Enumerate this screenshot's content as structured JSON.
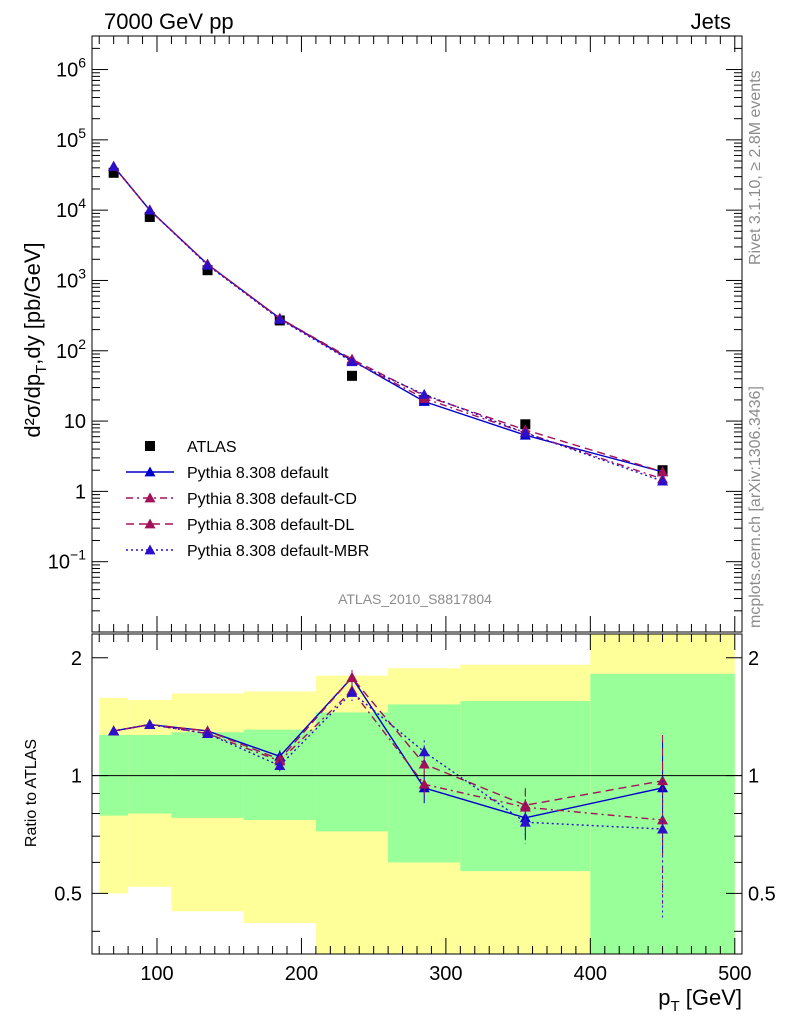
{
  "header": {
    "left": "7000 GeV pp",
    "right": "Jets"
  },
  "side_labels": {
    "rivet": "Rivet 3.1.10, ≥ 2.8M events",
    "mcplots": "mcplots.cern.ch [arXiv:1306.3436]"
  },
  "analysis_id": "ATLAS_2010_S8817804",
  "chart_data": [
    {
      "type": "scatter",
      "panel": "main",
      "xlim": [
        55,
        505
      ],
      "ylim": [
        0.01,
        3000000
      ],
      "yscale": "log",
      "ylabel": "d²σ/dp_T,dy [pb/GeV]",
      "yticks": [
        "10^-1",
        "1",
        "10",
        "10^2",
        "10^3",
        "10^4",
        "10^5",
        "10^6"
      ],
      "legend_position": "bottom-left",
      "series": [
        {
          "name": "ATLAS",
          "style": "marker-square",
          "color": "#000000",
          "x": [
            70,
            95,
            135,
            185,
            235,
            285,
            355,
            450
          ],
          "y": [
            34000,
            8000,
            1400,
            270,
            44,
            20,
            9,
            2
          ]
        },
        {
          "name": "Pythia 8.308 default",
          "style": "solid",
          "color": "#0000cc",
          "x": [
            70,
            95,
            135,
            185,
            235,
            285,
            355,
            450
          ],
          "y": [
            42000,
            10000,
            1700,
            290,
            73,
            19,
            6.3,
            1.9
          ]
        },
        {
          "name": "Pythia 8.308 default-CD",
          "style": "dash-dot",
          "color": "#a3105a",
          "x": [
            70,
            95,
            135,
            185,
            235,
            285,
            355,
            450
          ],
          "y": [
            42000,
            10000,
            1700,
            285,
            72,
            21,
            6.8,
            1.5
          ]
        },
        {
          "name": "Pythia 8.308 default-DL",
          "style": "dash",
          "color": "#a3105a",
          "x": [
            70,
            95,
            135,
            185,
            235,
            285,
            355,
            450
          ],
          "y": [
            42000,
            10000,
            1700,
            290,
            76,
            23,
            7.5,
            1.9
          ]
        },
        {
          "name": "Pythia 8.308 default-MBR",
          "style": "dot",
          "color": "#2a0fcc",
          "x": [
            70,
            95,
            135,
            185,
            235,
            285,
            355,
            450
          ],
          "y": [
            42000,
            10000,
            1650,
            280,
            70,
            24,
            6.8,
            1.4
          ]
        }
      ]
    },
    {
      "type": "line",
      "panel": "ratio",
      "xlim": [
        55,
        505
      ],
      "ylim": [
        0.35,
        2.3
      ],
      "yscale": "log",
      "xlabel": "p_T [GeV]",
      "ylabel": "Ratio to ATLAS",
      "xticks": [
        100,
        200,
        300,
        400,
        500
      ],
      "yticks": [
        0.5,
        1,
        2
      ],
      "bands": [
        {
          "x0": 60,
          "x1": 80,
          "green": [
            0.79,
            1.27
          ],
          "yellow": [
            0.5,
            1.58
          ]
        },
        {
          "x0": 80,
          "x1": 110,
          "green": [
            0.8,
            1.27
          ],
          "yellow": [
            0.52,
            1.56
          ]
        },
        {
          "x0": 110,
          "x1": 160,
          "green": [
            0.78,
            1.29
          ],
          "yellow": [
            0.45,
            1.62
          ]
        },
        {
          "x0": 160,
          "x1": 210,
          "green": [
            0.77,
            1.31
          ],
          "yellow": [
            0.42,
            1.64
          ]
        },
        {
          "x0": 210,
          "x1": 260,
          "green": [
            0.72,
            1.45
          ],
          "yellow": [
            0.2,
            1.8
          ]
        },
        {
          "x0": 260,
          "x1": 310,
          "green": [
            0.6,
            1.52
          ],
          "yellow": [
            0.3,
            1.88
          ]
        },
        {
          "x0": 310,
          "x1": 400,
          "green": [
            0.57,
            1.55
          ],
          "yellow": [
            0.3,
            1.92
          ]
        },
        {
          "x0": 400,
          "x1": 500,
          "green": [
            0.3,
            1.82
          ],
          "yellow": [
            0.3,
            2.5
          ]
        }
      ],
      "series": [
        {
          "name": "Pythia 8.308 default",
          "style": "solid",
          "color": "#0000cc",
          "x": [
            70,
            95,
            135,
            185,
            235,
            285,
            355,
            450
          ],
          "y": [
            1.3,
            1.35,
            1.3,
            1.12,
            1.78,
            0.93,
            0.78,
            0.93
          ],
          "err": [
            0.02,
            0.02,
            0.02,
            0.04,
            0.08,
            0.08,
            0.09,
            0.3
          ]
        },
        {
          "name": "Pythia 8.308 default-CD",
          "style": "dash-dot",
          "color": "#a3105a",
          "x": [
            70,
            95,
            135,
            185,
            235,
            285,
            355,
            450
          ],
          "y": [
            1.3,
            1.35,
            1.28,
            1.09,
            1.65,
            0.95,
            0.83,
            0.77
          ],
          "err": [
            0.02,
            0.02,
            0.02,
            0.04,
            0.08,
            0.08,
            0.09,
            0.3
          ]
        },
        {
          "name": "Pythia 8.308 default-DL",
          "style": "dash",
          "color": "#a3105a",
          "x": [
            70,
            95,
            135,
            185,
            235,
            285,
            355,
            450
          ],
          "y": [
            1.3,
            1.35,
            1.3,
            1.1,
            1.78,
            1.07,
            0.84,
            0.97
          ],
          "err": [
            0.02,
            0.02,
            0.02,
            0.04,
            0.08,
            0.08,
            0.09,
            0.3
          ]
        },
        {
          "name": "Pythia 8.308 default-MBR",
          "style": "dot",
          "color": "#2a0fcc",
          "x": [
            70,
            95,
            135,
            185,
            235,
            285,
            355,
            450
          ],
          "y": [
            1.3,
            1.35,
            1.28,
            1.06,
            1.63,
            1.15,
            0.76,
            0.73
          ],
          "err": [
            0.02,
            0.02,
            0.02,
            0.04,
            0.08,
            0.08,
            0.09,
            0.3
          ]
        }
      ]
    }
  ]
}
